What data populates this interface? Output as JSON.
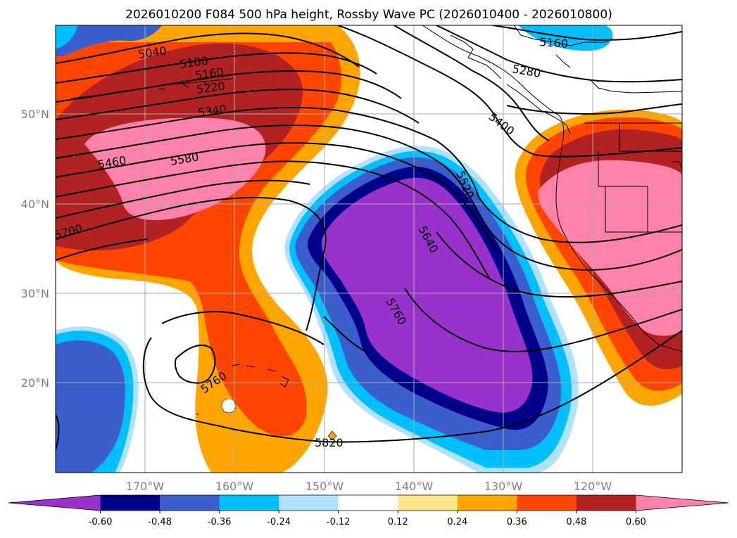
{
  "title": "2026010200 F084 500 hPa height, Rossby Wave PC (2026010400 - 2026010800)",
  "lat_ticks": [
    "50°N",
    "40°N",
    "30°N",
    "20°N"
  ],
  "lon_ticks": [
    "170°W",
    "160°W",
    "150°W",
    "140°W",
    "130°W",
    "120°W"
  ],
  "colorbar": {
    "levels": [
      "-0.60",
      "-0.48",
      "-0.36",
      "-0.24",
      "-0.12",
      "0.12",
      "0.24",
      "0.36",
      "0.48",
      "0.60"
    ],
    "colors": [
      "#9932cc",
      "#00008b",
      "#3a5fcd",
      "#00bfff",
      "#b0e2ff",
      "#ffffff",
      "#fde68a",
      "#ffa500",
      "#ff4500",
      "#b22222",
      "#ff82ab"
    ]
  },
  "contour_labels": [
    "5040",
    "5100",
    "5160",
    "5220",
    "5340",
    "5460",
    "5580",
    "5700",
    "5160",
    "5280",
    "5400",
    "5520",
    "5640",
    "5760",
    "5760",
    "5820"
  ],
  "colors": {
    "grid": "#aaaaaa",
    "contour": "#000000",
    "coast": "#000000"
  }
}
